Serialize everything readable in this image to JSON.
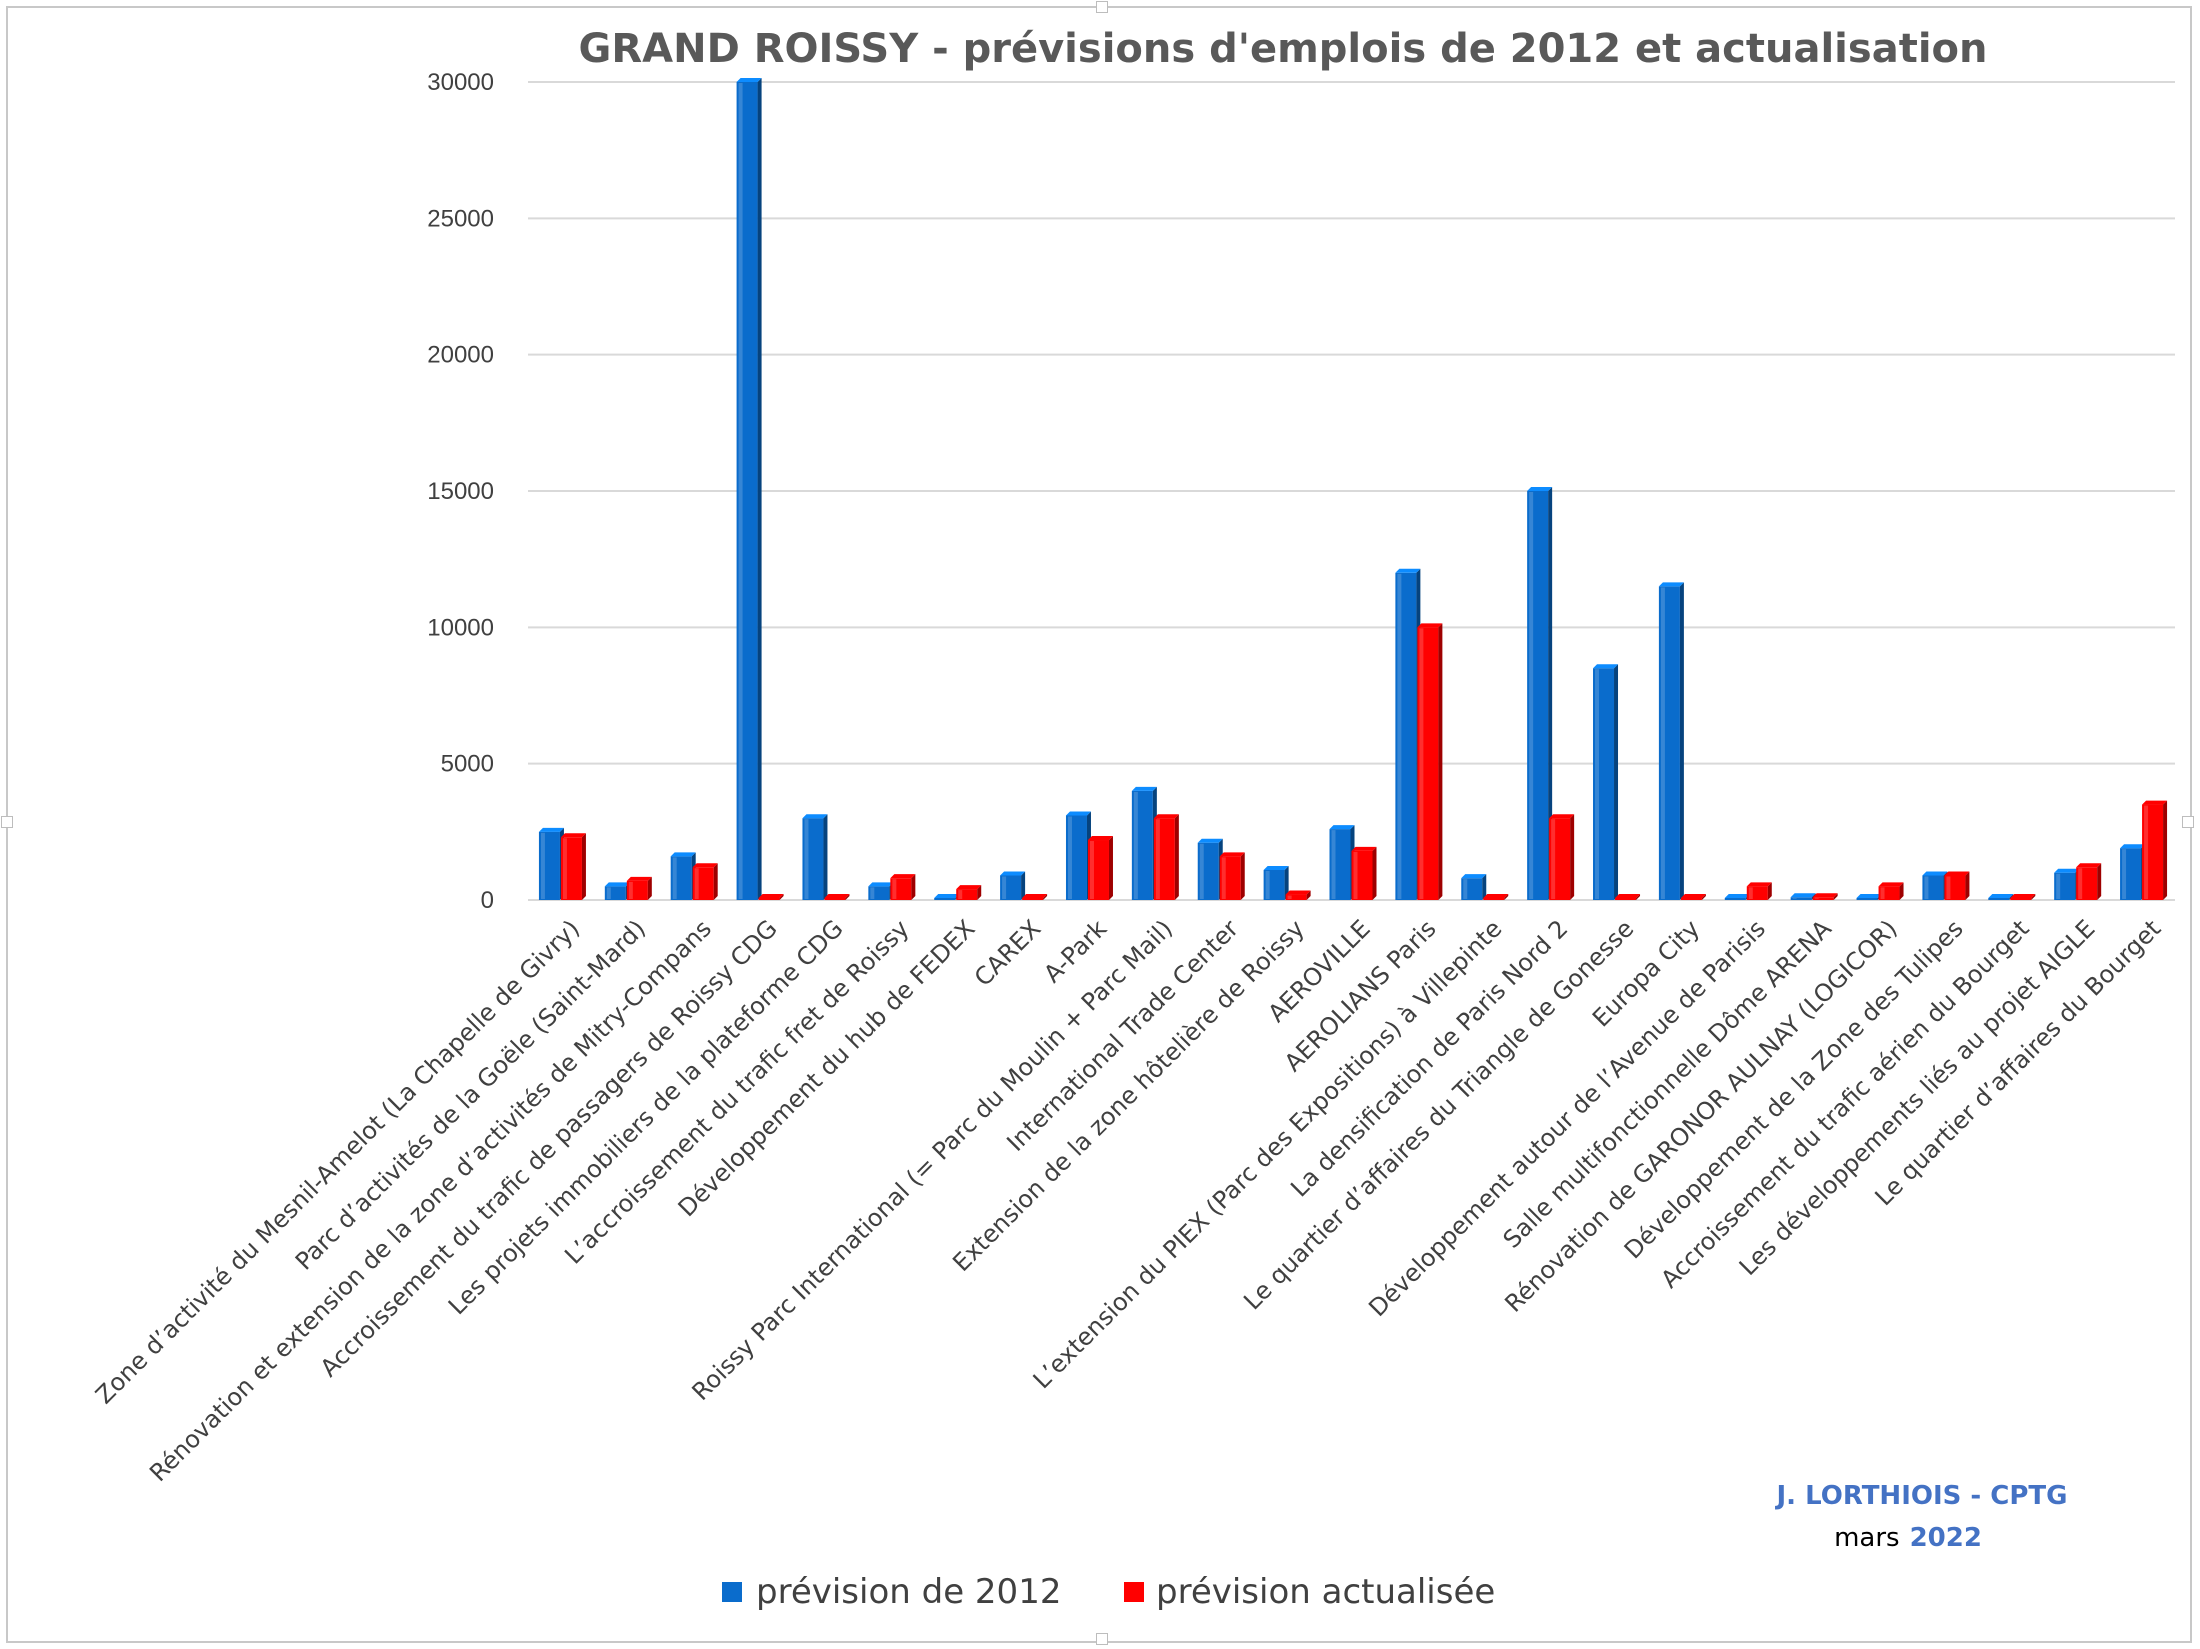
{
  "colors": {
    "series_2012": "#0a6ccc",
    "series_update": "#ff0000",
    "grid": "#d9d9d9"
  },
  "credit": {
    "author": "J. LORTHIOIS - CPTG",
    "date_word": "mars",
    "date_year": "2022"
  },
  "chart_data": {
    "type": "bar",
    "title": "GRAND ROISSY - prévisions d'emplois de 2012 et actualisation",
    "xlabel": "",
    "ylabel": "",
    "ylim": [
      0,
      30000
    ],
    "yticks": [
      0,
      5000,
      10000,
      15000,
      20000,
      25000,
      30000
    ],
    "grid": true,
    "legend_position": "bottom",
    "categories": [
      "Zone d’activité du Mesnil-Amelot (La Chapelle de Givry)",
      "Parc d’activités de la Goële (Saint-Mard)",
      "Rénovation et extension de la zone d’activités de Mitry-Compans",
      "Accroissement du trafic de passagers de Roissy CDG",
      "Les projets immobiliers de la plateforme CDG",
      "L’accroissement du trafic fret de Roissy",
      "Développement du hub de FEDEX",
      "CAREX",
      "A-Park",
      "Roissy Parc International (= Parc du Moulin + Parc Mail)",
      "International Trade Center",
      "Extension de la zone hôtelière de Roissy",
      "AEROVILLE",
      "AEROLIANS Paris",
      "L’extension du PIEX (Parc des Expositions) à Villepinte",
      "La densification de Paris Nord 2",
      "Le quartier d’affaires du Triangle de Gonesse",
      "Europa City",
      "Développement autour de l’Avenue de Parisis",
      "Salle multifonctionnelle Dôme ARENA",
      "Rénovation de GARONOR AULNAY (LOGICOR)",
      "Développement de la Zone des Tulipes",
      "Accroissement du trafic aérien du Bourget",
      "Les développements liés au projet AIGLE",
      "Le quartier d’affaires du Bourget"
    ],
    "series": [
      {
        "name": "prévision de 2012",
        "values": [
          2500,
          500,
          1600,
          30000,
          3000,
          500,
          0,
          900,
          3100,
          4000,
          2100,
          1100,
          2600,
          12000,
          800,
          15000,
          8500,
          11500,
          0,
          100,
          0,
          900,
          50,
          1000,
          1900
        ]
      },
      {
        "name": "prévision actualisée",
        "values": [
          2300,
          700,
          1200,
          0,
          0,
          800,
          400,
          0,
          2200,
          3000,
          1600,
          200,
          1800,
          10000,
          0,
          3000,
          0,
          0,
          500,
          100,
          500,
          900,
          50,
          1200,
          3500
        ]
      }
    ]
  }
}
